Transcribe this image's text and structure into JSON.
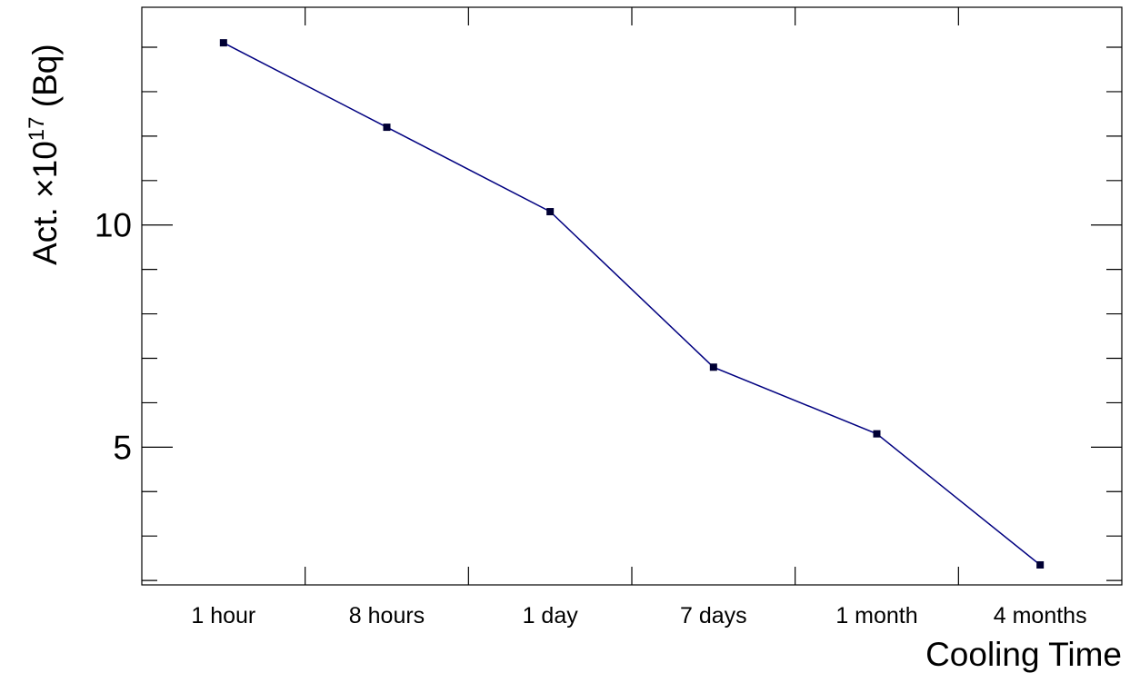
{
  "chart_data": {
    "type": "line",
    "title": "",
    "xlabel": "Cooling Time",
    "ylabel_prefix": "Act. ×10",
    "ylabel_exponent": "17",
    "ylabel_suffix": " (Bq)",
    "categories": [
      "1 hour",
      "8 hours",
      "1 day",
      "7 days",
      "1 month",
      "4 months"
    ],
    "series": [
      {
        "values": [
          14.1,
          12.2,
          10.3,
          6.8,
          5.3,
          2.35
        ]
      }
    ],
    "yticks_major": [
      5,
      10
    ],
    "yminor_step": 1,
    "ylim": [
      1.9,
      14.9
    ],
    "grid": false,
    "legend": "none",
    "colors": {
      "line": "#000080",
      "marker": "#000033",
      "axis": "#000000"
    }
  }
}
